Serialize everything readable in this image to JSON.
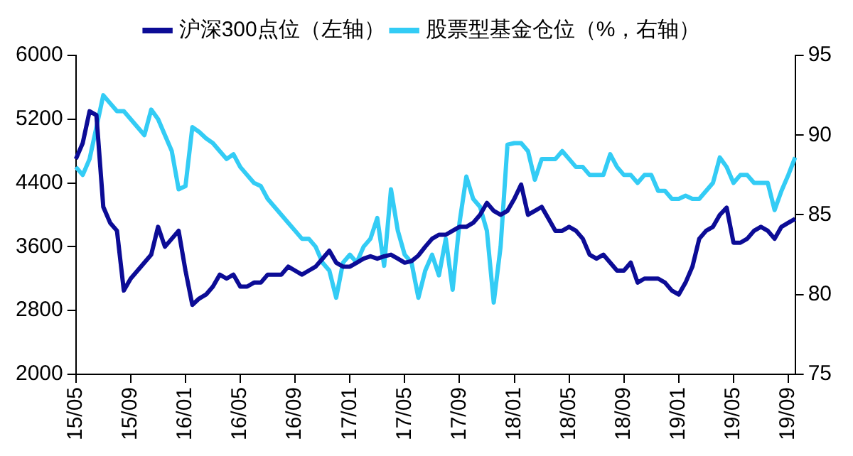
{
  "chart_data": {
    "type": "line",
    "categories": [
      "15/05",
      null,
      null,
      null,
      null,
      null,
      null,
      null,
      "15/09",
      null,
      null,
      null,
      null,
      null,
      null,
      null,
      "16/01",
      null,
      null,
      null,
      null,
      null,
      null,
      null,
      "16/05",
      null,
      null,
      null,
      null,
      null,
      null,
      null,
      "16/09",
      null,
      null,
      null,
      null,
      null,
      null,
      null,
      "17/01",
      null,
      null,
      null,
      null,
      null,
      null,
      null,
      "17/05",
      null,
      null,
      null,
      null,
      null,
      null,
      null,
      "17/09",
      null,
      null,
      null,
      null,
      null,
      null,
      null,
      "18/01",
      null,
      null,
      null,
      null,
      null,
      null,
      null,
      "18/05",
      null,
      null,
      null,
      null,
      null,
      null,
      null,
      "18/09",
      null,
      null,
      null,
      null,
      null,
      null,
      null,
      "19/01",
      null,
      null,
      null,
      null,
      null,
      null,
      null,
      "19/05",
      null,
      null,
      null,
      null,
      null,
      null,
      null,
      "19/09",
      null
    ],
    "series": [
      {
        "name": "沪深300点位（左轴）",
        "color": "#0c0c96",
        "axis": "y",
        "values": [
          4700,
          4900,
          5300,
          5250,
          4100,
          3900,
          3800,
          3050,
          3200,
          3300,
          3400,
          3500,
          3850,
          3600,
          3700,
          3800,
          3300,
          2870,
          2950,
          3000,
          3100,
          3250,
          3200,
          3250,
          3100,
          3100,
          3150,
          3150,
          3250,
          3250,
          3250,
          3350,
          3300,
          3250,
          3300,
          3350,
          3450,
          3550,
          3400,
          3350,
          3350,
          3400,
          3450,
          3480,
          3450,
          3480,
          3500,
          3450,
          3400,
          3420,
          3490,
          3600,
          3700,
          3750,
          3750,
          3800,
          3850,
          3850,
          3900,
          4000,
          4150,
          4050,
          4000,
          4050,
          4200,
          4380,
          4000,
          4050,
          4100,
          3950,
          3800,
          3800,
          3850,
          3800,
          3700,
          3500,
          3450,
          3500,
          3400,
          3300,
          3300,
          3400,
          3150,
          3200,
          3200,
          3200,
          3150,
          3050,
          3000,
          3150,
          3350,
          3700,
          3800,
          3850,
          4000,
          4090,
          3650,
          3650,
          3700,
          3800,
          3850,
          3800,
          3700,
          3850,
          3900,
          3950
        ]
      },
      {
        "name": "股票型基金仓位（%，右轴）",
        "color": "#33ccf5",
        "axis": "y2",
        "values": [
          88,
          87.5,
          88.5,
          90.5,
          92.5,
          92,
          91.5,
          91.5,
          91,
          90.5,
          90,
          91.6,
          91,
          90,
          89,
          86.6,
          86.8,
          90.5,
          90.2,
          89.8,
          89.5,
          89,
          88.5,
          88.8,
          88,
          87.5,
          87,
          86.8,
          86,
          85.5,
          85,
          84.5,
          84,
          83.5,
          83.5,
          83,
          82,
          81.5,
          79.8,
          82,
          82.5,
          82,
          83,
          83.5,
          84.8,
          81.8,
          86.6,
          84,
          82.5,
          82,
          79.8,
          81.5,
          82.5,
          81.2,
          83.5,
          80.3,
          84.5,
          87.4,
          86,
          85.5,
          84,
          79.5,
          83,
          89.4,
          89.5,
          89.5,
          89,
          87.2,
          88.5,
          88.5,
          88.5,
          89,
          88.5,
          88,
          88,
          87.5,
          87.5,
          87.5,
          88.8,
          88,
          87.5,
          87.5,
          87,
          87.5,
          87.5,
          86.5,
          86.5,
          86,
          86,
          86.2,
          86,
          86,
          86.5,
          87,
          88.6,
          88,
          87,
          87.5,
          87.5,
          87,
          87,
          87,
          85.3,
          86.5,
          87.5,
          88.6
        ]
      }
    ],
    "ylim": [
      2000,
      6000
    ],
    "yticks": [
      2000,
      2800,
      3600,
      4400,
      5200,
      6000
    ],
    "y2lim": [
      75,
      95
    ],
    "y2ticks": [
      75,
      80,
      85,
      90,
      95
    ],
    "grid": false,
    "legend": "top",
    "marker": "none",
    "line_style": "solid"
  }
}
